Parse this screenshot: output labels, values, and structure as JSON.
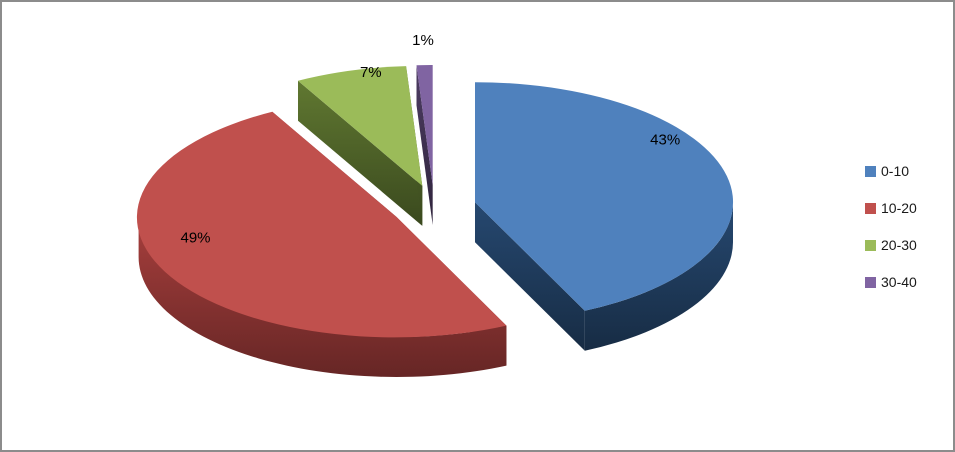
{
  "frame": {
    "background": "#FFFFFF",
    "border_color": "#8C8C8C"
  },
  "chart_data": {
    "type": "pie",
    "style": "3d-exploded",
    "categories": [
      "0-10",
      "10-20",
      "20-30",
      "30-40"
    ],
    "values": [
      43,
      49,
      7,
      1
    ],
    "unit": "percent",
    "data_labels": [
      "43%",
      "49%",
      "7%",
      "1%"
    ],
    "slice_colors": [
      "#4F81BD",
      "#C0504D",
      "#9BBB59",
      "#8064A2"
    ],
    "slice_side_colors": [
      "#1F3B5C",
      "#8A3432",
      "#4F6228",
      "#3F3151"
    ],
    "start_angle_deg": -90,
    "direction": "clockwise",
    "legend": {
      "position": "right",
      "items": [
        {
          "label": "0-10",
          "color": "#4F81BD"
        },
        {
          "label": "10-20",
          "color": "#C0504D"
        },
        {
          "label": "20-30",
          "color": "#9BBB59"
        },
        {
          "label": "30-40",
          "color": "#8064A2"
        }
      ]
    }
  }
}
